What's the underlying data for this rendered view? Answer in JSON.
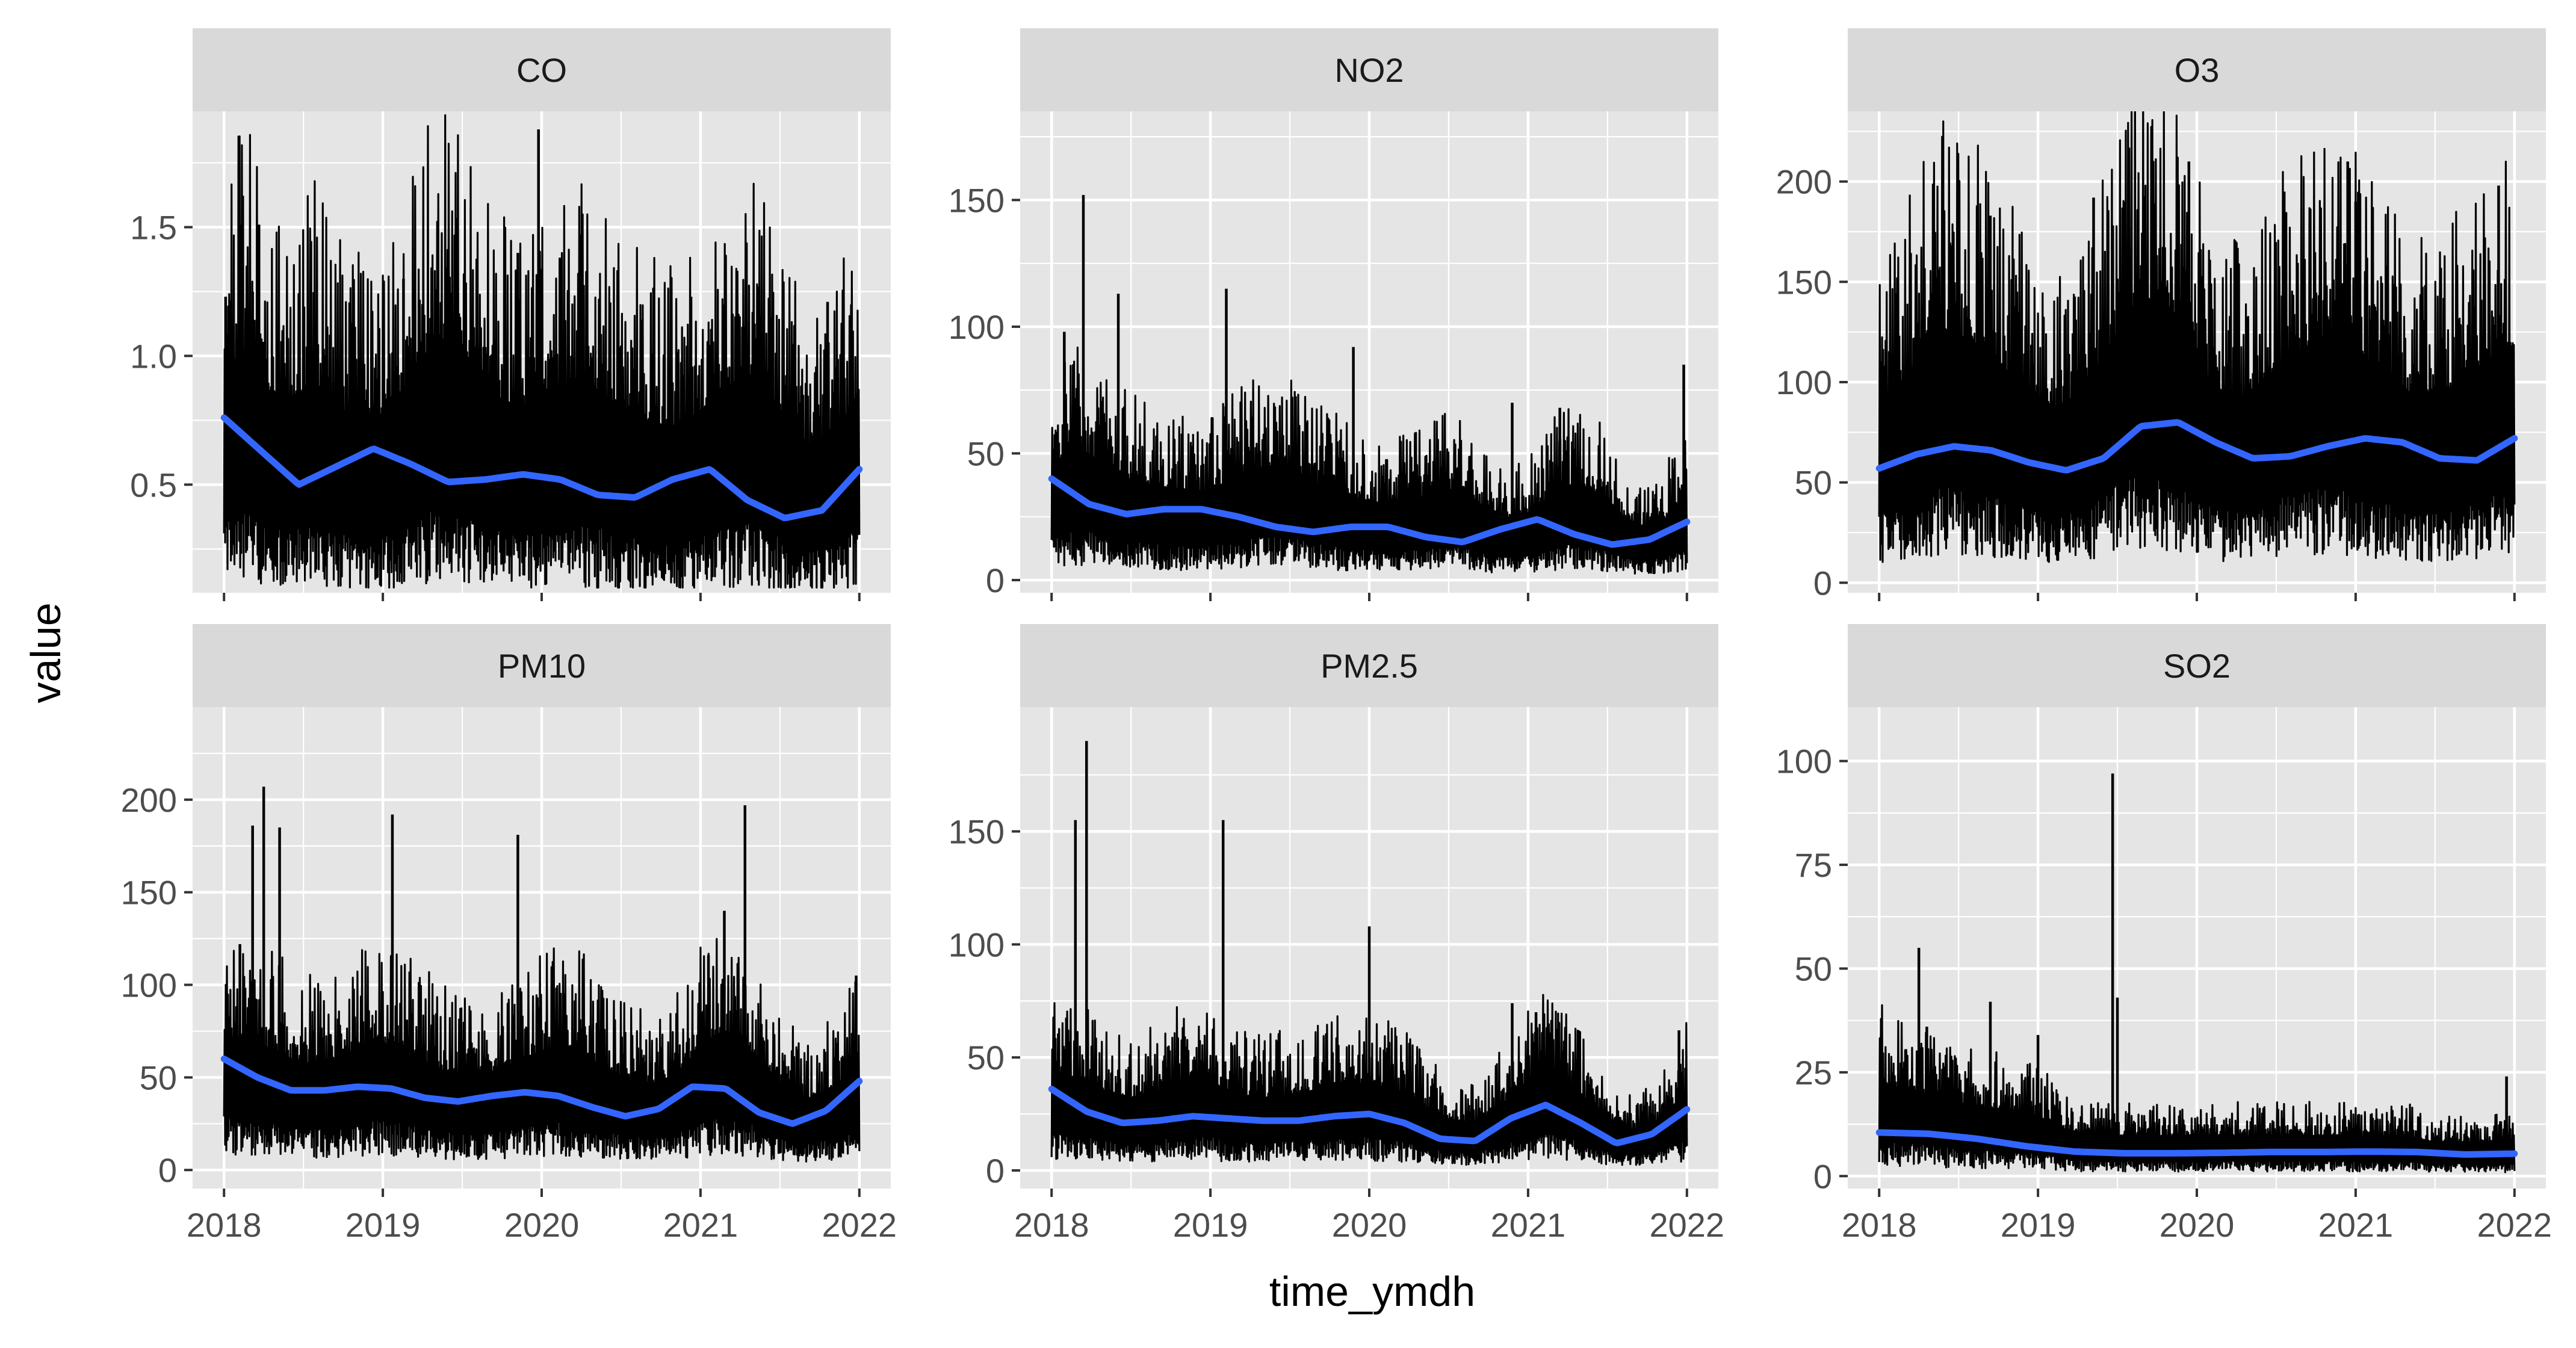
{
  "chart_data": {
    "type": "line",
    "xlabel": "time_ymdh",
    "ylabel": "value",
    "x_ticks": [
      "2018",
      "2019",
      "2020",
      "2021",
      "2022"
    ],
    "x_range": [
      2018,
      2022
    ],
    "grid": true,
    "colors": {
      "panel_bg": "#e5e5e5",
      "strip_bg": "#d9d9d9",
      "grid": "#ffffff",
      "series_line": "#000000",
      "smooth_line": "#3366ff"
    },
    "panels": [
      {
        "name": "CO",
        "ylim": [
          0.08,
          1.95
        ],
        "y_ticks": [
          0.5,
          1.0,
          1.5
        ],
        "y_tick_labels": [
          "0.5",
          "1.0",
          "1.5"
        ],
        "y_minor": [
          0.25,
          0.75,
          1.25,
          1.75
        ],
        "base": [
          0.58,
          0.64,
          0.54,
          0.52,
          0.56,
          0.5,
          0.47,
          0.48,
          0.55,
          0.64,
          0.67,
          0.6,
          0.52,
          0.5,
          0.52,
          0.55,
          0.56,
          0.52,
          0.48,
          0.46,
          0.45,
          0.49,
          0.54,
          0.58,
          0.52,
          0.44,
          0.4,
          0.44,
          0.54
        ],
        "spikes": [
          {
            "x": 2018.01,
            "v": 1.23
          },
          {
            "x": 2018.18,
            "v": 1.25
          },
          {
            "x": 2018.22,
            "v": 1.51
          },
          {
            "x": 2019.13,
            "v": 1.3
          },
          {
            "x": 2019.85,
            "v": 1.4
          },
          {
            "x": 2019.98,
            "v": 1.88
          },
          {
            "x": 2020.94,
            "v": 1.23
          },
          {
            "x": 2021.15,
            "v": 1.2
          },
          {
            "x": 2021.8,
            "v": 1.21
          },
          {
            "x": 2021.95,
            "v": 1.2
          }
        ],
        "smooth": [
          0.76,
          0.63,
          0.5,
          0.57,
          0.64,
          0.58,
          0.51,
          0.52,
          0.54,
          0.52,
          0.46,
          0.45,
          0.52,
          0.56,
          0.44,
          0.37,
          0.4,
          0.56
        ]
      },
      {
        "name": "NO2",
        "ylim": [
          -5,
          185
        ],
        "y_ticks": [
          0,
          50,
          100,
          150
        ],
        "y_tick_labels": [
          "0",
          "50",
          "100",
          "150"
        ],
        "y_minor": [
          25,
          75,
          125,
          175
        ],
        "base": [
          28,
          33,
          30,
          26,
          24,
          23,
          22,
          22,
          24,
          27,
          28,
          27,
          24,
          22,
          20,
          19,
          19,
          20,
          22,
          21,
          17,
          15,
          17,
          22,
          24,
          21,
          16,
          13,
          15,
          21
        ],
        "spikes": [
          {
            "x": 2018.2,
            "v": 152
          },
          {
            "x": 2018.42,
            "v": 113
          },
          {
            "x": 2019.1,
            "v": 115
          },
          {
            "x": 2018.08,
            "v": 98
          },
          {
            "x": 2019.9,
            "v": 92
          },
          {
            "x": 2020.9,
            "v": 70
          },
          {
            "x": 2021.2,
            "v": 68
          },
          {
            "x": 2021.98,
            "v": 85
          }
        ],
        "smooth": [
          40,
          30,
          26,
          28,
          28,
          25,
          21,
          19,
          21,
          21,
          17,
          15,
          20,
          24,
          18,
          14,
          16,
          23
        ]
      },
      {
        "name": "O3",
        "ylim": [
          -5,
          235
        ],
        "y_ticks": [
          0,
          50,
          100,
          150,
          200
        ],
        "y_tick_labels": [
          "0",
          "50",
          "100",
          "150",
          "200"
        ],
        "y_minor": [
          25,
          75,
          125,
          175,
          225
        ],
        "base": [
          55,
          62,
          72,
          78,
          76,
          70,
          63,
          56,
          54,
          60,
          72,
          84,
          88,
          80,
          68,
          60,
          58,
          62,
          70,
          74,
          76,
          72,
          66,
          60,
          58,
          60,
          64,
          70,
          74
        ],
        "spikes": [
          {
            "x": 2018.7,
            "v": 183
          },
          {
            "x": 2019.35,
            "v": 192
          },
          {
            "x": 2019.95,
            "v": 210
          },
          {
            "x": 2020.55,
            "v": 195
          },
          {
            "x": 2020.95,
            "v": 210
          },
          {
            "x": 2021.0,
            "v": 190
          },
          {
            "x": 2021.9,
            "v": 198
          }
        ],
        "smooth": [
          57,
          64,
          68,
          66,
          60,
          56,
          62,
          78,
          80,
          70,
          62,
          63,
          68,
          72,
          70,
          62,
          61,
          72
        ]
      },
      {
        "name": "PM10",
        "ylim": [
          -10,
          250
        ],
        "y_ticks": [
          0,
          50,
          100,
          150,
          200
        ],
        "y_tick_labels": [
          "0",
          "50",
          "100",
          "150",
          "200"
        ],
        "y_minor": [
          25,
          75,
          125,
          175,
          225
        ],
        "base": [
          46,
          42,
          40,
          36,
          36,
          40,
          43,
          42,
          36,
          32,
          32,
          34,
          38,
          42,
          40,
          34,
          30,
          28,
          34,
          44,
          46,
          38,
          28,
          24,
          28,
          36
        ],
        "spikes": [
          {
            "x": 2018.1,
            "v": 122
          },
          {
            "x": 2018.18,
            "v": 186
          },
          {
            "x": 2018.25,
            "v": 207
          },
          {
            "x": 2018.35,
            "v": 185
          },
          {
            "x": 2019.06,
            "v": 192
          },
          {
            "x": 2019.85,
            "v": 181
          },
          {
            "x": 2021.05,
            "v": 116
          },
          {
            "x": 2021.15,
            "v": 140
          },
          {
            "x": 2021.28,
            "v": 197
          },
          {
            "x": 2021.98,
            "v": 105
          }
        ],
        "smooth": [
          60,
          50,
          43,
          43,
          45,
          44,
          39,
          37,
          40,
          42,
          40,
          34,
          29,
          33,
          45,
          44,
          31,
          25,
          32,
          48
        ]
      },
      {
        "name": "PM2.5",
        "ylim": [
          -8,
          205
        ],
        "y_ticks": [
          0,
          50,
          100,
          150
        ],
        "y_tick_labels": [
          "0",
          "50",
          "100",
          "150"
        ],
        "y_minor": [
          25,
          75,
          125,
          175
        ],
        "base": [
          28,
          25,
          22,
          20,
          22,
          25,
          24,
          21,
          20,
          21,
          22,
          24,
          24,
          22,
          18,
          14,
          13,
          18,
          25,
          27,
          21,
          14,
          11,
          14,
          22
        ],
        "spikes": [
          {
            "x": 2018.15,
            "v": 155
          },
          {
            "x": 2018.22,
            "v": 190
          },
          {
            "x": 2019.08,
            "v": 155
          },
          {
            "x": 2020.0,
            "v": 108
          },
          {
            "x": 2020.9,
            "v": 74
          },
          {
            "x": 2021.05,
            "v": 70
          },
          {
            "x": 2021.95,
            "v": 62
          }
        ],
        "smooth": [
          36,
          26,
          21,
          22,
          24,
          23,
          22,
          22,
          24,
          25,
          21,
          14,
          13,
          23,
          29,
          21,
          12,
          16,
          27
        ]
      },
      {
        "name": "SO2",
        "ylim": [
          -3,
          113
        ],
        "y_ticks": [
          0,
          25,
          50,
          75,
          100
        ],
        "y_tick_labels": [
          "0",
          "25",
          "50",
          "75",
          "100"
        ],
        "y_minor": [
          12.5,
          37.5,
          62.5,
          87.5
        ],
        "base": [
          14,
          13,
          12,
          11,
          10,
          10,
          9,
          7,
          6,
          6,
          6,
          6,
          6,
          6,
          6,
          6,
          6,
          6,
          6,
          6,
          6,
          5,
          5,
          5,
          5
        ],
        "spikes": [
          {
            "x": 2018.25,
            "v": 55
          },
          {
            "x": 2018.3,
            "v": 36
          },
          {
            "x": 2018.7,
            "v": 42
          },
          {
            "x": 2019.0,
            "v": 34
          },
          {
            "x": 2019.47,
            "v": 97
          },
          {
            "x": 2019.5,
            "v": 43
          },
          {
            "x": 2021.95,
            "v": 24
          }
        ],
        "smooth": [
          10.5,
          10.2,
          9.0,
          7.2,
          5.9,
          5.5,
          5.5,
          5.6,
          5.8,
          5.8,
          5.9,
          5.8,
          5.2,
          5.4
        ]
      }
    ]
  }
}
